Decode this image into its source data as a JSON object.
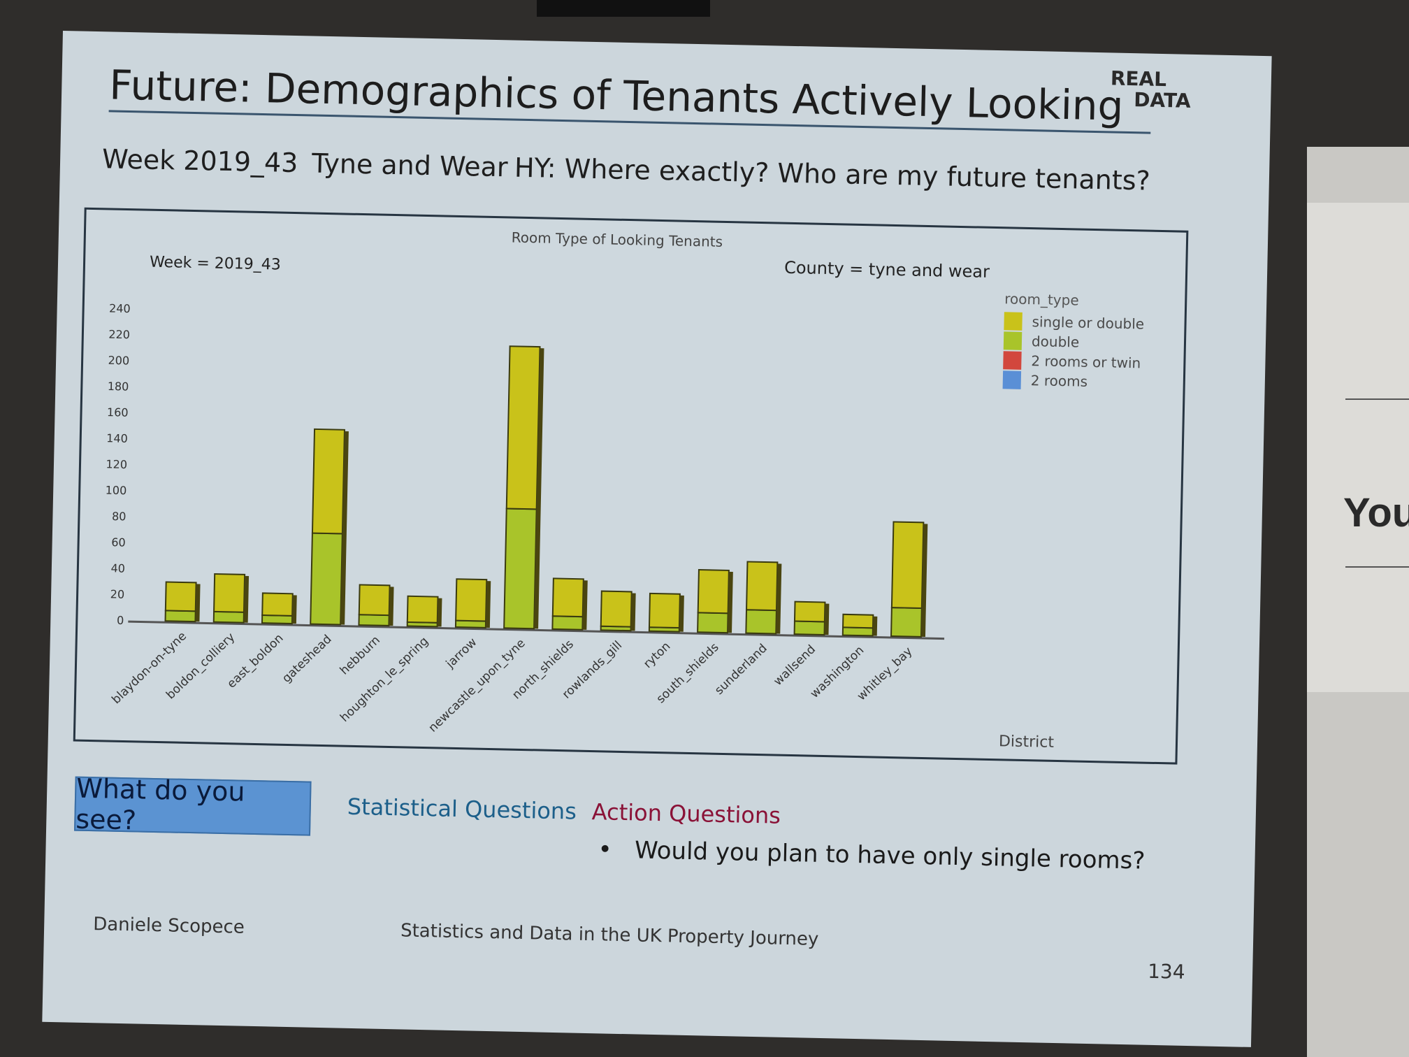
{
  "slide": {
    "title": "Future: Demographics of Tenants Actively Looking",
    "brand_line1": "REAL",
    "brand_line2": "DATA",
    "week": "Week 2019_43",
    "region": "Tyne and Wear",
    "question": "HY: Where exactly? Who are my future tenants?",
    "button_label": "What do you see?",
    "statistical_label": "Statistical Questions",
    "action_label": "Action Questions",
    "bullet_text": "Would you plan to have only single rooms?",
    "author": "Daniele Scopece",
    "footer_title": "Statistics and Data in the UK Property Journey",
    "page_number": "134"
  },
  "background": {
    "side_text": "You"
  },
  "chart_data": {
    "type": "bar",
    "stacked": true,
    "title": "Room Type of Looking Tenants",
    "panel_left_label": "Week = 2019_43",
    "panel_right_label": "County = tyne and wear",
    "xlabel": "District",
    "ylabel": "",
    "ylim": [
      0,
      240
    ],
    "yticks": [
      0,
      20,
      40,
      60,
      80,
      100,
      120,
      140,
      160,
      180,
      200,
      220,
      240
    ],
    "categories": [
      "blaydon-on-tyne",
      "boldon_colliery",
      "east_boldon",
      "gateshead",
      "hebburn",
      "houghton_le_spring",
      "jarrow",
      "newcastle_upon_tyne",
      "north_shields",
      "rowlands_gill",
      "ryton",
      "south_shields",
      "sunderland",
      "wallsend",
      "washington",
      "whitley_bay"
    ],
    "legend_title": "room_type",
    "legend_position": "top-right",
    "series": [
      {
        "name": "single or double",
        "color": "#c9c21a",
        "values": [
          22,
          29,
          17,
          80,
          23,
          20,
          32,
          125,
          29,
          27,
          26,
          33,
          37,
          15,
          10,
          66
        ]
      },
      {
        "name": "double",
        "color": "#a9c42a",
        "values": [
          8,
          8,
          6,
          70,
          8,
          3,
          5,
          92,
          10,
          3,
          3,
          15,
          18,
          10,
          6,
          22
        ]
      },
      {
        "name": "2 rooms  or twin",
        "color": "#d2473d",
        "values": [
          0,
          0,
          0,
          0,
          0,
          0,
          0,
          0,
          0,
          0,
          0,
          0,
          0,
          0,
          0,
          0
        ]
      },
      {
        "name": "2 rooms",
        "color": "#5a8fd6",
        "values": [
          0,
          0,
          0,
          0,
          0,
          0,
          0,
          0,
          0,
          0,
          0,
          0,
          0,
          0,
          0,
          0
        ]
      }
    ]
  }
}
